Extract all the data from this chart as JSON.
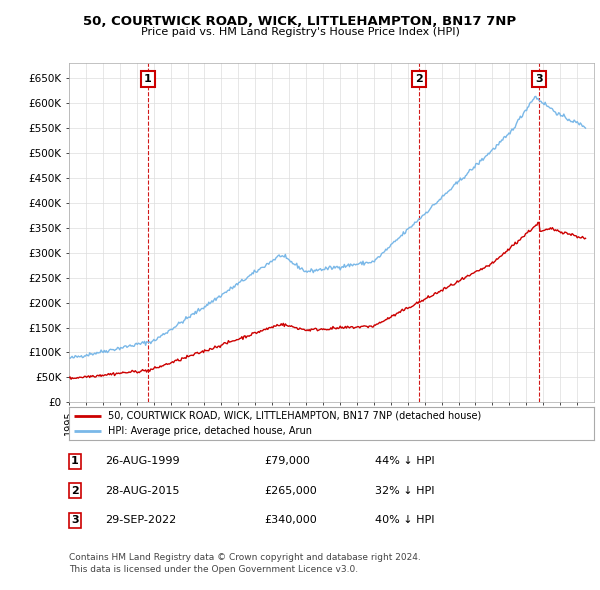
{
  "title": "50, COURTWICK ROAD, WICK, LITTLEHAMPTON, BN17 7NP",
  "subtitle": "Price paid vs. HM Land Registry's House Price Index (HPI)",
  "ylim": [
    0,
    680000
  ],
  "yticks": [
    0,
    50000,
    100000,
    150000,
    200000,
    250000,
    300000,
    350000,
    400000,
    450000,
    500000,
    550000,
    600000,
    650000
  ],
  "ytick_labels": [
    "£0",
    "£50K",
    "£100K",
    "£150K",
    "£200K",
    "£250K",
    "£300K",
    "£350K",
    "£400K",
    "£450K",
    "£500K",
    "£550K",
    "£600K",
    "£650K"
  ],
  "xlim_start": 1995.0,
  "xlim_end": 2026.0,
  "hpi_color": "#7ab8e8",
  "price_color": "#cc0000",
  "sale_marker_color": "#cc0000",
  "sales": [
    {
      "year": 1999.65,
      "price": 79000,
      "label": "1"
    },
    {
      "year": 2015.65,
      "price": 265000,
      "label": "2"
    },
    {
      "year": 2022.75,
      "price": 340000,
      "label": "3"
    }
  ],
  "legend_price_label": "50, COURTWICK ROAD, WICK, LITTLEHAMPTON, BN17 7NP (detached house)",
  "legend_hpi_label": "HPI: Average price, detached house, Arun",
  "table_rows": [
    {
      "num": "1",
      "date": "26-AUG-1999",
      "price": "£79,000",
      "pct": "44% ↓ HPI"
    },
    {
      "num": "2",
      "date": "28-AUG-2015",
      "price": "£265,000",
      "pct": "32% ↓ HPI"
    },
    {
      "num": "3",
      "date": "29-SEP-2022",
      "price": "£340,000",
      "pct": "40% ↓ HPI"
    }
  ],
  "footer": "Contains HM Land Registry data © Crown copyright and database right 2024.\nThis data is licensed under the Open Government Licence v3.0.",
  "background_color": "#ffffff",
  "grid_color": "#dddddd"
}
